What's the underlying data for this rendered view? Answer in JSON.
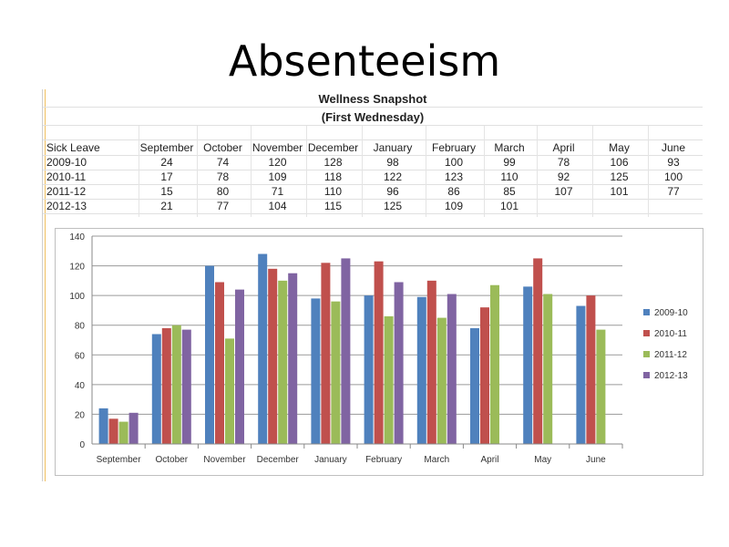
{
  "slide": {
    "title": "Absenteeism"
  },
  "sheet": {
    "title_line1": "Wellness Snapshot",
    "title_line2": "(First Wednesday)",
    "corner_label": "Sick Leave",
    "months": [
      "September",
      "October",
      "November",
      "December",
      "January",
      "February",
      "March",
      "April",
      "May",
      "June"
    ],
    "rows": [
      {
        "label": "2009-10",
        "values": [
          "24",
          "74",
          "120",
          "128",
          "98",
          "100",
          "99",
          "78",
          "106",
          "93"
        ]
      },
      {
        "label": "2010-11",
        "values": [
          "17",
          "78",
          "109",
          "118",
          "122",
          "123",
          "110",
          "92",
          "125",
          "100"
        ]
      },
      {
        "label": "2011-12",
        "values": [
          "15",
          "80",
          "71",
          "110",
          "96",
          "86",
          "85",
          "107",
          "101",
          "77"
        ]
      },
      {
        "label": "2012-13",
        "values": [
          "21",
          "77",
          "104",
          "115",
          "125",
          "109",
          "101",
          "",
          "",
          ""
        ]
      }
    ]
  },
  "chart_data": {
    "type": "bar",
    "categories": [
      "September",
      "October",
      "November",
      "December",
      "January",
      "February",
      "March",
      "April",
      "May",
      "June"
    ],
    "series": [
      {
        "name": "2009-10",
        "color": "#4f81bd",
        "values": [
          24,
          74,
          120,
          128,
          98,
          100,
          99,
          78,
          106,
          93
        ]
      },
      {
        "name": "2010-11",
        "color": "#c0504d",
        "values": [
          17,
          78,
          109,
          118,
          122,
          123,
          110,
          92,
          125,
          100
        ]
      },
      {
        "name": "2011-12",
        "color": "#9bbb59",
        "values": [
          15,
          80,
          71,
          110,
          96,
          86,
          85,
          107,
          101,
          77
        ]
      },
      {
        "name": "2012-13",
        "color": "#8064a2",
        "values": [
          21,
          77,
          104,
          115,
          125,
          109,
          101,
          null,
          null,
          null
        ]
      }
    ],
    "ylim": [
      0,
      140
    ],
    "yticks": [
      0,
      20,
      40,
      60,
      80,
      100,
      120,
      140
    ],
    "grid": true,
    "legend": "right"
  }
}
